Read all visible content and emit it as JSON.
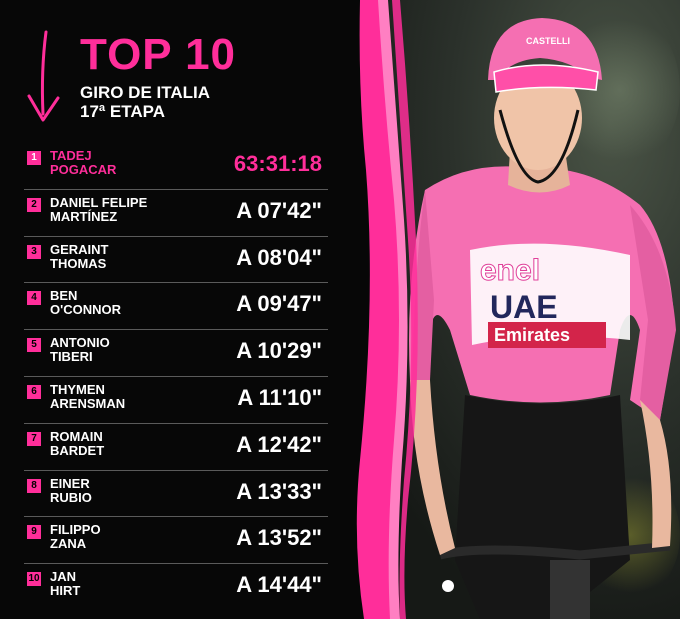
{
  "header": {
    "title": "TOP 10",
    "subtitle_line1": "GIRO DE ITALIA",
    "subtitle_line2": "17ª ETAPA"
  },
  "ranking": [
    {
      "position": "1",
      "first_name": "TADEJ",
      "last_name": "POGACAR",
      "time": "63:31:18"
    },
    {
      "position": "2",
      "first_name": "DANIEL FELIPE",
      "last_name": "MARTÍNEZ",
      "time": "A 07'42\""
    },
    {
      "position": "3",
      "first_name": "GERAINT",
      "last_name": "THOMAS",
      "time": "A 08'04\""
    },
    {
      "position": "4",
      "first_name": "BEN",
      "last_name": "O'CONNOR",
      "time": "A 09'47\""
    },
    {
      "position": "5",
      "first_name": "ANTONIO",
      "last_name": "TIBERI",
      "time": "A 10'29\""
    },
    {
      "position": "6",
      "first_name": "THYMEN",
      "last_name": "ARENSMAN",
      "time": "A 11'10\""
    },
    {
      "position": "7",
      "first_name": "ROMAIN",
      "last_name": "BARDET",
      "time": "A 12'42\""
    },
    {
      "position": "8",
      "first_name": "EINER",
      "last_name": "RUBIO",
      "time": "A 13'33\""
    },
    {
      "position": "9",
      "first_name": "FILIPPO",
      "last_name": "ZANA",
      "time": "A 13'52\""
    },
    {
      "position": "10",
      "first_name": "JAN",
      "last_name": "HIRT",
      "time": "A 14'44\""
    }
  ],
  "jersey_text": {
    "brand1": "enel",
    "brand2": "UAE",
    "brand3": "Emirates",
    "helmet": "CASTELLI"
  },
  "colors": {
    "accent": "#ff2e9a",
    "background": "#070707",
    "text": "#ffffff",
    "jersey": "#f56fb2"
  }
}
